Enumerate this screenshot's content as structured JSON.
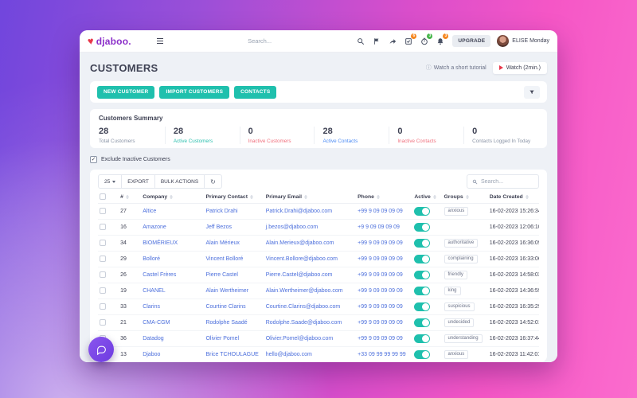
{
  "topnav": {
    "logo_text": "djaboo.",
    "search_placeholder": "Search...",
    "badges": {
      "checklist": "6",
      "timer": "3",
      "bell": "3"
    },
    "upgrade_label": "UPGRADE",
    "user_name": "ELISE Monday"
  },
  "page": {
    "title": "CUSTOMERS",
    "tutorial_link": "Watch a short tutorial",
    "watch_button": "Watch (2min.)"
  },
  "toolbar": {
    "buttons": [
      "NEW CUSTOMER",
      "IMPORT CUSTOMERS",
      "CONTACTS"
    ]
  },
  "summary": {
    "title": "Customers Summary",
    "items": [
      {
        "value": "28",
        "label": "Total Customers",
        "color": "#8a94a6"
      },
      {
        "value": "28",
        "label": "Active Customers",
        "color": "#2abfae"
      },
      {
        "value": "0",
        "label": "Inactive Customers",
        "color": "#f0707e"
      },
      {
        "value": "28",
        "label": "Active Contacts",
        "color": "#4a8af4"
      },
      {
        "value": "0",
        "label": "Inactive Contacts",
        "color": "#f0707e"
      },
      {
        "value": "0",
        "label": "Contacts Logged In Today",
        "color": "#8a94a6"
      }
    ]
  },
  "filters": {
    "exclude_label": "Exclude Inactive Customers",
    "exclude_checked": true,
    "page_size": "25",
    "export_label": "EXPORT",
    "bulk_label": "BULK ACTIONS",
    "search_placeholder": "Search..."
  },
  "table": {
    "columns": [
      "#",
      "Company",
      "Primary Contact",
      "Primary Email",
      "Phone",
      "Active",
      "Groups",
      "Date Created"
    ],
    "rows": [
      {
        "num": "27",
        "company": "Altice",
        "contact": "Patrick Drahi",
        "email": "Patrick.Drahi@djaboo.com",
        "phone": "+99 9 09 09 09 09",
        "active": true,
        "group": "anxious",
        "created": "16-02-2023 15:26:34"
      },
      {
        "num": "16",
        "company": "Amazone",
        "contact": "Jeff Bezos",
        "email": "j.bezos@djaboo.com",
        "phone": "+9 9 09 09 09 09",
        "active": true,
        "group": "",
        "created": "16-02-2023 12:06:10"
      },
      {
        "num": "34",
        "company": "BIOMÉRIEUX",
        "contact": "Alain Mérieux",
        "email": "Alain.Merieux@djaboo.com",
        "phone": "+99 9 09 09 09 09",
        "active": true,
        "group": "authoritative",
        "created": "16-02-2023 16:36:09"
      },
      {
        "num": "29",
        "company": "Bolloré",
        "contact": "Vincent Bolloré",
        "email": "Vincent.Bollore@djaboo.com",
        "phone": "+99 9 09 09 09 09",
        "active": true,
        "group": "complaining",
        "created": "16-02-2023 16:33:06"
      },
      {
        "num": "26",
        "company": "Castel Frères",
        "contact": "Pierre Castel",
        "email": "Pierre.Castel@djaboo.com",
        "phone": "+99 9 09 09 09 09",
        "active": true,
        "group": "friendly",
        "created": "16-02-2023 14:58:03"
      },
      {
        "num": "19",
        "company": "CHANEL",
        "contact": "Alain Wertheimer",
        "email": "Alain.Wertheimer@djaboo.com",
        "phone": "+99 9 09 09 09 09",
        "active": true,
        "group": "king",
        "created": "16-02-2023 14:36:59"
      },
      {
        "num": "33",
        "company": "Clarins",
        "contact": "Courtine Clarins",
        "email": "Courtine.Clarins@djaboo.com",
        "phone": "+99 9 09 09 09 09",
        "active": true,
        "group": "suspicious",
        "created": "16-02-2023 16:35:29"
      },
      {
        "num": "21",
        "company": "CMA-CGM",
        "contact": "Rodolphe Saadé",
        "email": "Rodolphe.Saade@djaboo.com",
        "phone": "+99 9 09 09 09 09",
        "active": true,
        "group": "undecided",
        "created": "16-02-2023 14:52:01"
      },
      {
        "num": "36",
        "company": "Datadog",
        "contact": "Olivier Pomel",
        "email": "Olivier.Pomel@djaboo.com",
        "phone": "+99 9 09 09 09 09",
        "active": true,
        "group": "understanding",
        "created": "16-02-2023 16:37:44"
      },
      {
        "num": "13",
        "company": "Djaboo",
        "contact": "Brice TCHOULAGUE",
        "email": "hello@djaboo.com",
        "phone": "+33 09 99 99 99 99",
        "active": true,
        "group": "anxious",
        "created": "16-02-2023 11:42:01"
      }
    ]
  },
  "colors": {
    "accent_teal": "#1fc0ad",
    "link_blue": "#4c6fdc",
    "brand_purple": "#8b2fc9",
    "badge_orange": "#f5861f",
    "badge_green": "#44b549"
  }
}
